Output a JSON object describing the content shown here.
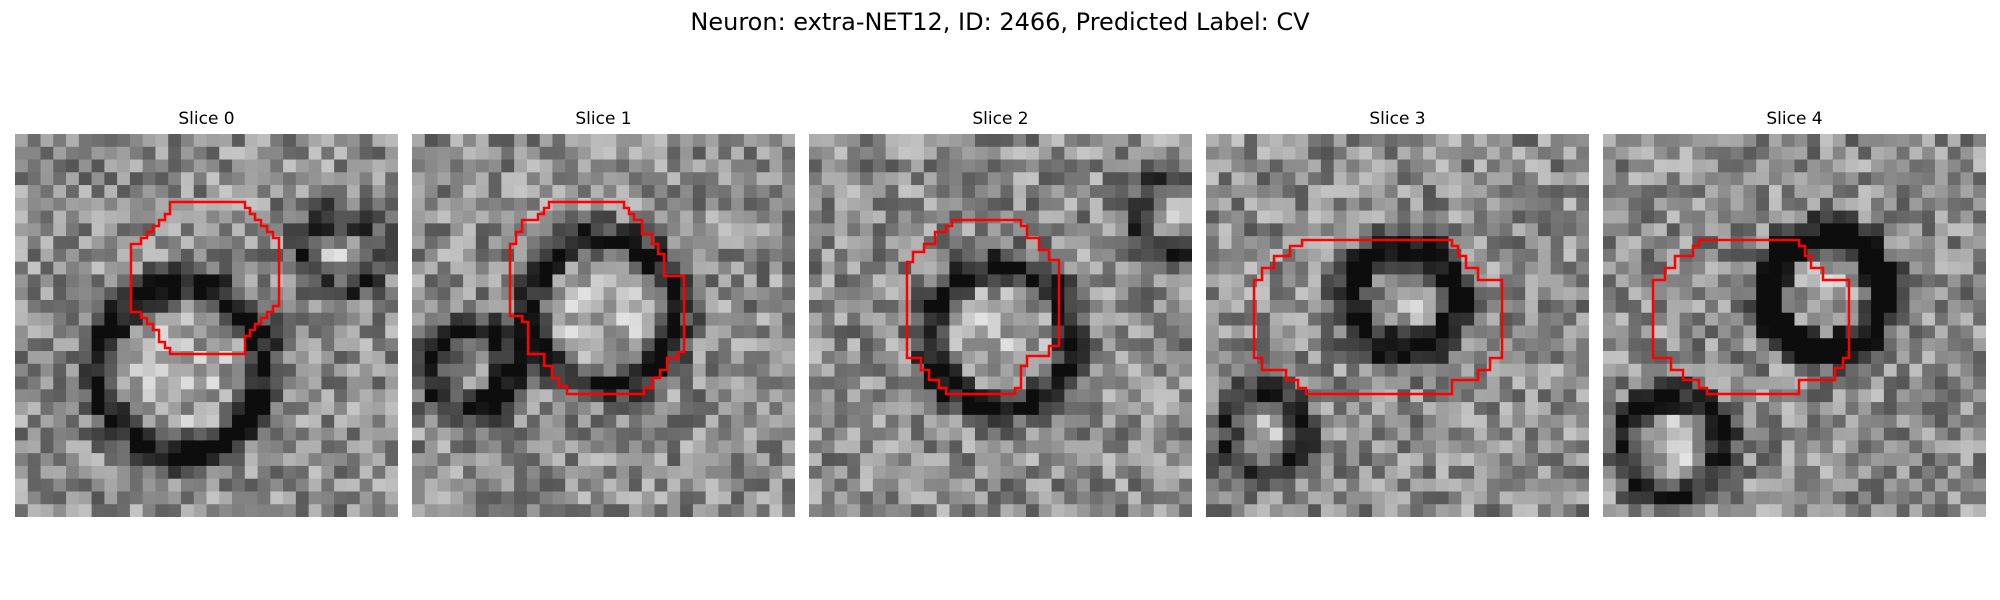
{
  "figure": {
    "title": "Neuron: extra-NET12, ID: 2466, Predicted Label: CV",
    "neuron_name": "extra-NET12",
    "neuron_id": "2466",
    "predicted_label": "CV"
  },
  "panels": [
    {
      "label": "Slice 0"
    },
    {
      "label": "Slice 1"
    },
    {
      "label": "Slice 2"
    },
    {
      "label": "Slice 3"
    },
    {
      "label": "Slice 4"
    }
  ],
  "colors": {
    "roi_outline": "#ff0000",
    "background": "#ffffff"
  },
  "icons": {
    "image_kind": "grayscale-em-slice",
    "overlay_kind": "roi-contour"
  }
}
